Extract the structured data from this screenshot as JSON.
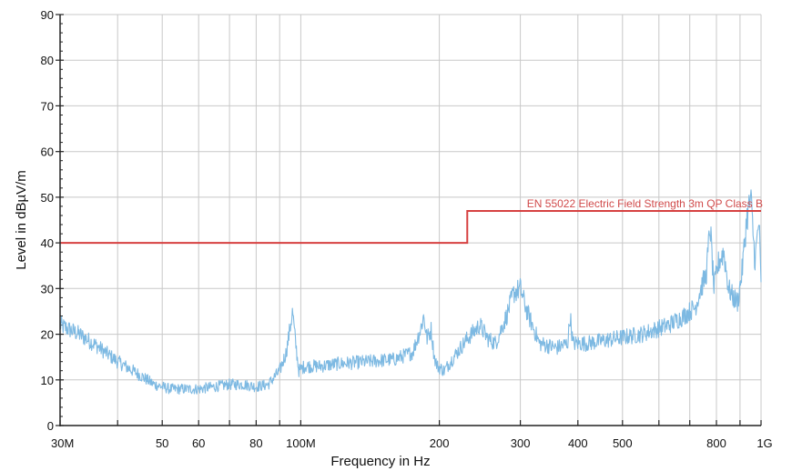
{
  "chart_data": {
    "type": "line",
    "x_scale": "log",
    "xlabel": "Frequency in Hz",
    "ylabel": "Level in dBµV/m",
    "xlim": [
      30000000,
      1000000000
    ],
    "ylim": [
      0,
      90
    ],
    "grid": true,
    "legend": "none",
    "x_ticks": [
      {
        "value": 30000000,
        "label": "30M"
      },
      {
        "value": 50000000,
        "label": "50"
      },
      {
        "value": 60000000,
        "label": "60"
      },
      {
        "value": 80000000,
        "label": "80"
      },
      {
        "value": 100000000,
        "label": "100M"
      },
      {
        "value": 200000000,
        "label": "200"
      },
      {
        "value": 300000000,
        "label": "300"
      },
      {
        "value": 400000000,
        "label": "400"
      },
      {
        "value": 500000000,
        "label": "500"
      },
      {
        "value": 800000000,
        "label": "800"
      },
      {
        "value": 1000000000,
        "label": "1G"
      }
    ],
    "x_gridlines": [
      30000000,
      40000000,
      50000000,
      60000000,
      70000000,
      80000000,
      90000000,
      100000000,
      200000000,
      300000000,
      400000000,
      500000000,
      600000000,
      700000000,
      800000000,
      900000000,
      1000000000
    ],
    "y_ticks": [
      0,
      10,
      20,
      30,
      40,
      50,
      60,
      70,
      80,
      90
    ],
    "series": [
      {
        "color": "#7db9e2",
        "x": [
          30000000,
          33000000,
          36000000,
          40000000,
          44000000,
          48000000,
          52000000,
          56000000,
          60000000,
          65000000,
          70000000,
          75000000,
          80000000,
          85000000,
          90000000,
          93000000,
          95000000,
          96000000,
          97000000,
          99000000,
          102000000,
          110000000,
          120000000,
          140000000,
          160000000,
          175000000,
          182000000,
          185000000,
          188000000,
          192000000,
          195000000,
          198000000,
          205000000,
          215000000,
          230000000,
          245000000,
          255000000,
          265000000,
          280000000,
          290000000,
          300000000,
          310000000,
          330000000,
          360000000,
          380000000,
          385000000,
          390000000,
          420000000,
          480000000,
          550000000,
          630000000,
          680000000,
          700000000,
          720000000,
          740000000,
          760000000,
          770000000,
          775000000,
          790000000,
          810000000,
          830000000,
          850000000,
          870000000,
          890000000,
          910000000,
          930000000,
          950000000,
          970000000,
          990000000,
          1000000000
        ],
        "values": [
          22,
          20,
          17.5,
          14,
          11.5,
          9,
          8,
          8,
          8,
          8.5,
          9,
          9,
          8.5,
          9,
          12,
          16,
          22,
          25,
          20,
          12,
          13,
          13,
          13.5,
          14,
          14.5,
          16,
          21,
          24,
          19,
          21,
          15,
          13,
          12,
          15,
          19,
          22,
          19,
          18,
          24,
          29,
          30,
          25,
          18,
          17,
          18,
          24,
          18,
          18,
          19,
          20,
          22,
          24,
          25,
          26,
          30,
          33,
          40,
          44,
          30,
          36,
          38,
          30,
          28,
          27,
          34,
          45,
          50,
          36,
          45,
          30
        ]
      },
      {
        "color": "#d64040",
        "x": [
          30000000,
          230000000,
          230000000,
          1000000000
        ],
        "values": [
          40,
          40,
          47,
          47
        ]
      }
    ],
    "annotations": [
      {
        "text": "EN 55022 Electric Field Strength 3m QP Class B",
        "x": 1000000000,
        "y": 47
      }
    ]
  }
}
